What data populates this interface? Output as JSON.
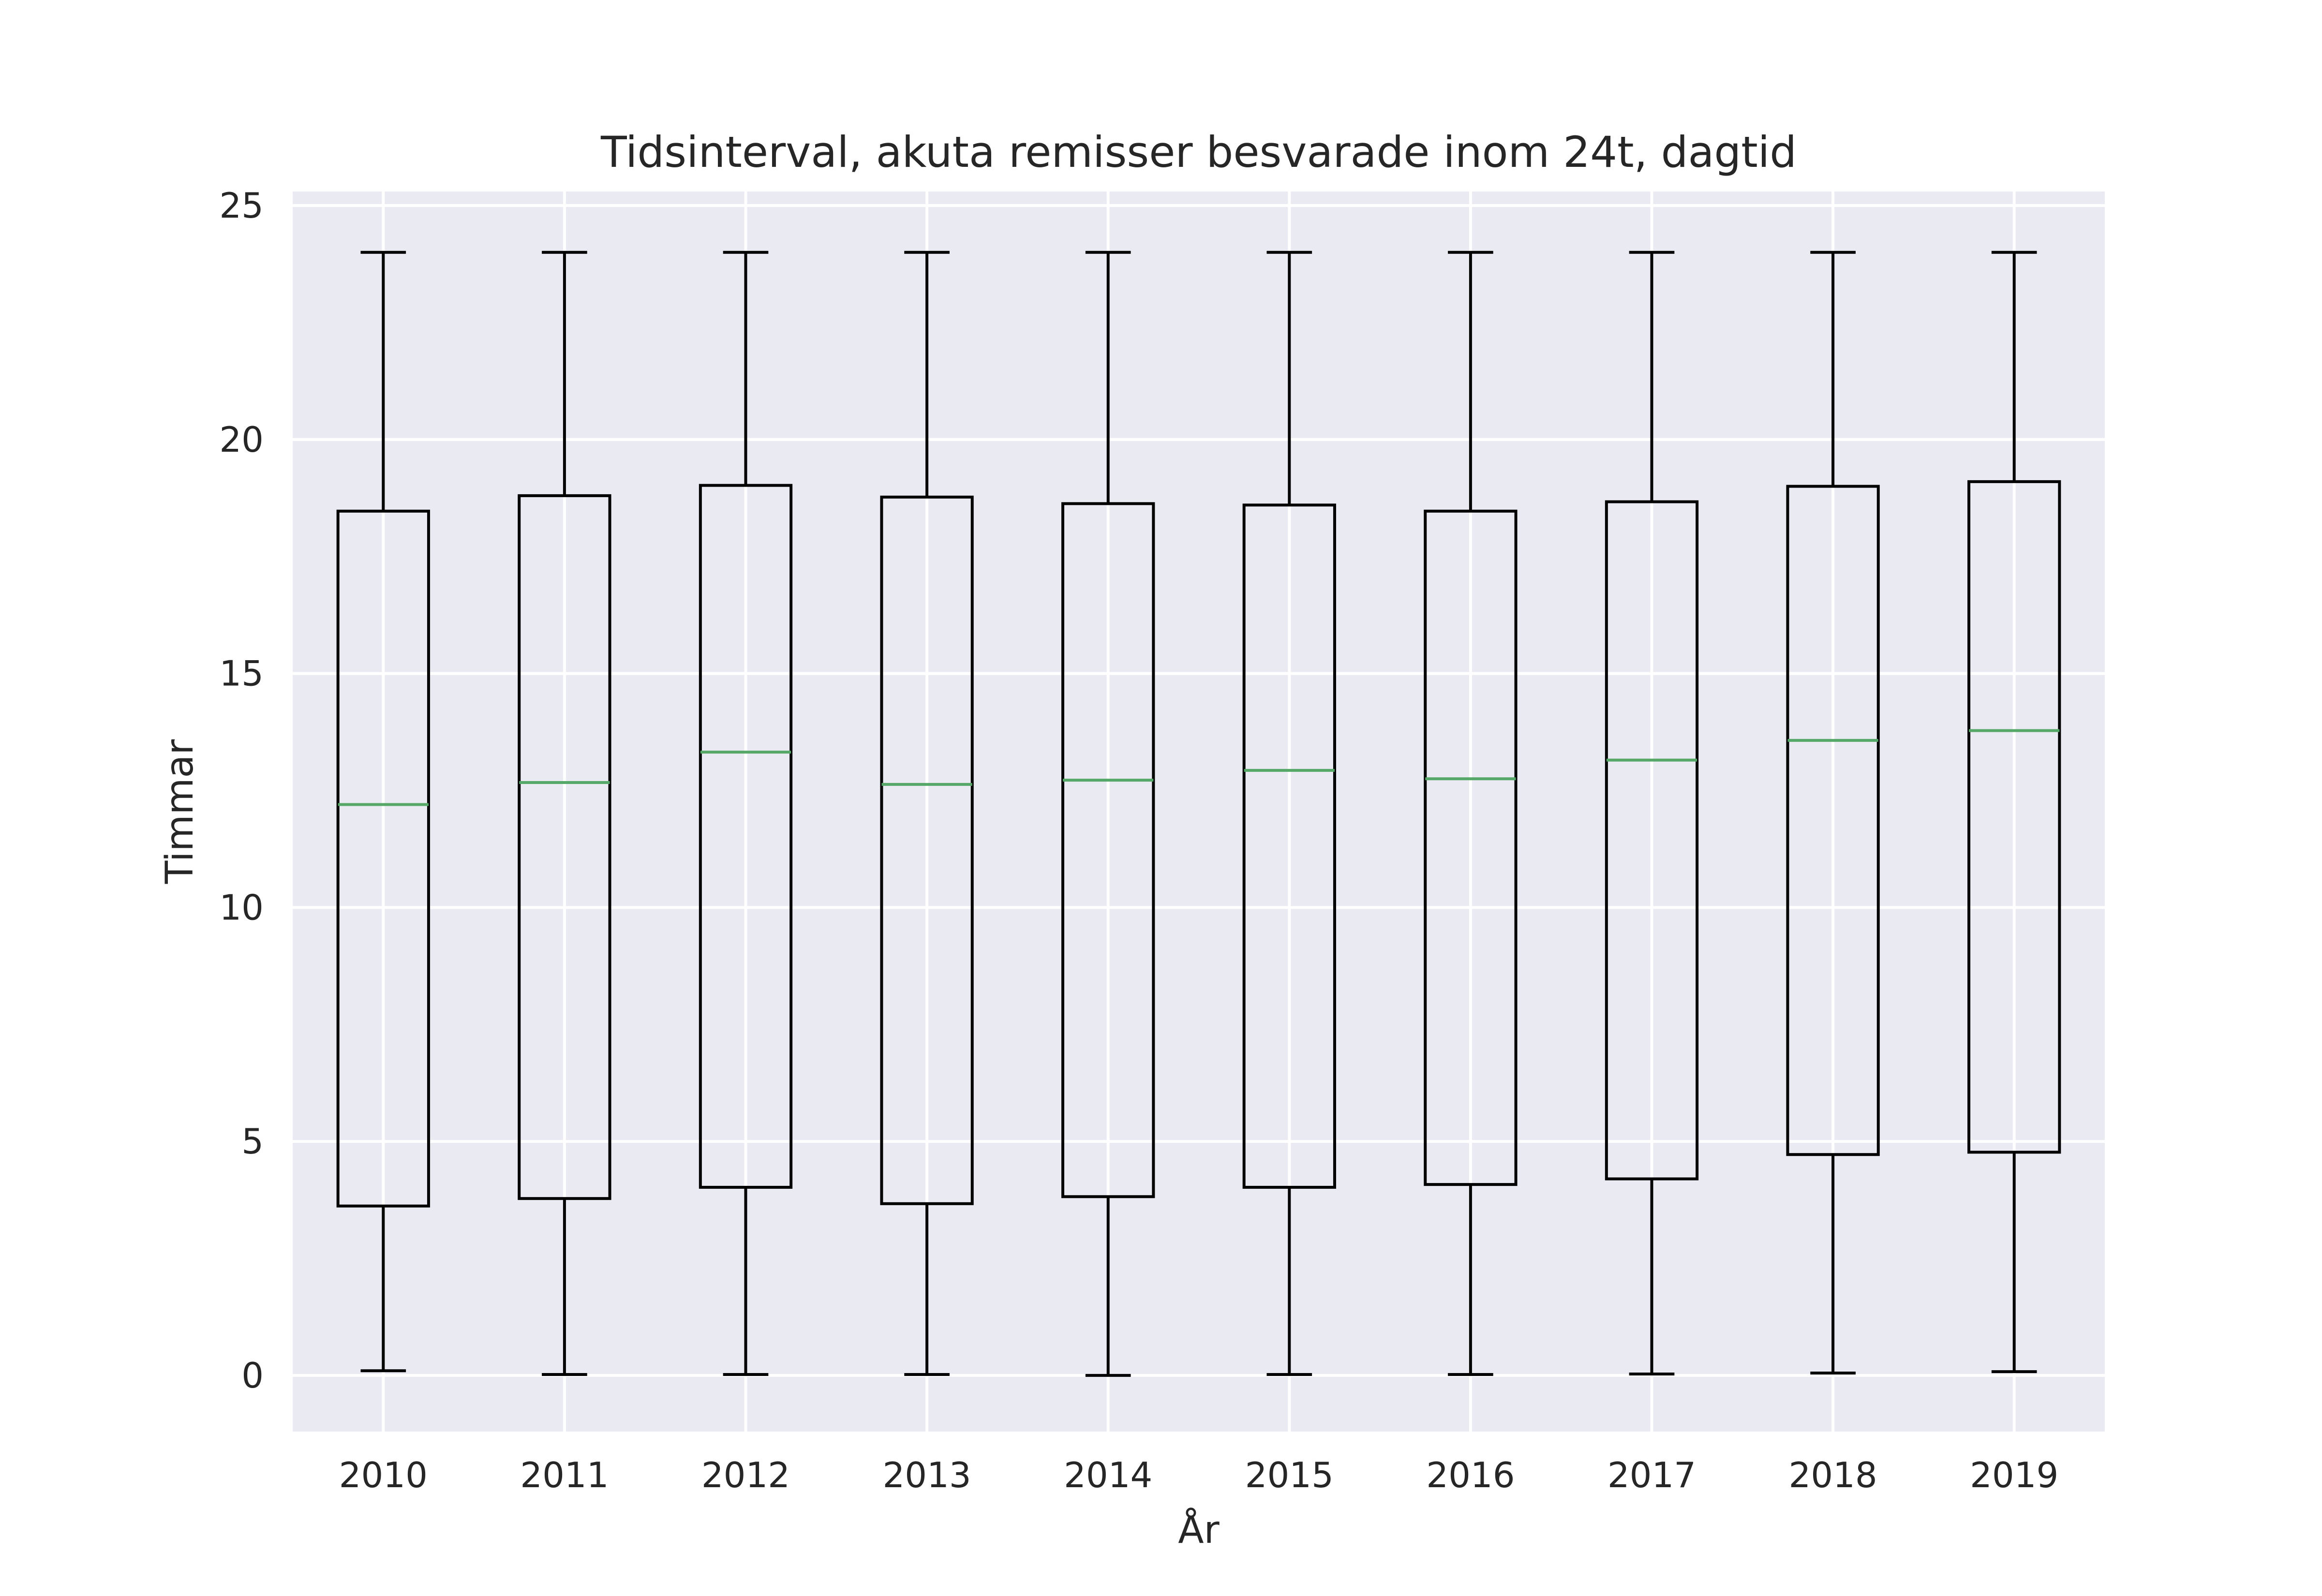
{
  "chart_data": {
    "type": "box",
    "title": "Tidsinterval, akuta remisser besvarade inom 24t, dagtid",
    "xlabel": "År",
    "ylabel": "Timmar",
    "ylim": [
      -1.2,
      25.3
    ],
    "yticks": [
      0,
      5,
      10,
      15,
      20,
      25
    ],
    "grid": true,
    "categories": [
      "2010",
      "2011",
      "2012",
      "2013",
      "2014",
      "2015",
      "2016",
      "2017",
      "2018",
      "2019"
    ],
    "boxes": [
      {
        "category": "2010",
        "whisker_low": 0.1,
        "q1": 3.62,
        "median": 12.2,
        "q3": 18.47,
        "whisker_high": 24.0
      },
      {
        "category": "2011",
        "whisker_low": 0.02,
        "q1": 3.78,
        "median": 12.67,
        "q3": 18.8,
        "whisker_high": 24.0
      },
      {
        "category": "2012",
        "whisker_low": 0.02,
        "q1": 4.02,
        "median": 13.32,
        "q3": 19.02,
        "whisker_high": 24.0
      },
      {
        "category": "2013",
        "whisker_low": 0.02,
        "q1": 3.67,
        "median": 12.63,
        "q3": 18.77,
        "whisker_high": 24.0
      },
      {
        "category": "2014",
        "whisker_low": 0.0,
        "q1": 3.82,
        "median": 12.72,
        "q3": 18.63,
        "whisker_high": 24.0
      },
      {
        "category": "2015",
        "whisker_low": 0.02,
        "q1": 4.02,
        "median": 12.93,
        "q3": 18.6,
        "whisker_high": 24.0
      },
      {
        "category": "2016",
        "whisker_low": 0.02,
        "q1": 4.08,
        "median": 12.75,
        "q3": 18.47,
        "whisker_high": 24.0
      },
      {
        "category": "2017",
        "whisker_low": 0.03,
        "q1": 4.2,
        "median": 13.15,
        "q3": 18.67,
        "whisker_high": 24.0
      },
      {
        "category": "2018",
        "whisker_low": 0.05,
        "q1": 4.72,
        "median": 13.57,
        "q3": 19.0,
        "whisker_high": 24.0
      },
      {
        "category": "2019",
        "whisker_low": 0.08,
        "q1": 4.77,
        "median": 13.78,
        "q3": 19.1,
        "whisker_high": 24.0
      }
    ]
  },
  "colors": {
    "plot_background": "#EAEAF2",
    "grid": "#FFFFFF",
    "box": "#000000",
    "median": "#55A868",
    "text": "#262626"
  }
}
